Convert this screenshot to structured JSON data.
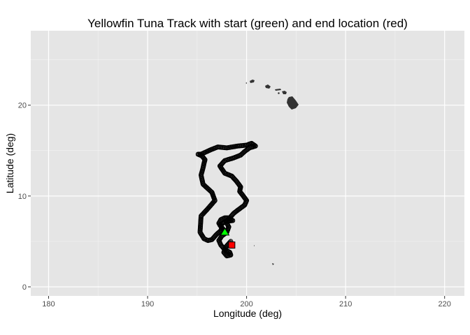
{
  "chart_data": {
    "type": "scatter",
    "title": "Yellowfin Tuna Track with start (green) and end location (red)",
    "xlabel": "Longitude (deg)",
    "ylabel": "Latitude (deg)",
    "xlim": [
      178.2,
      222.0
    ],
    "ylim": [
      -1.0,
      28.2
    ],
    "x_ticks": [
      180,
      190,
      200,
      210,
      220
    ],
    "y_ticks": [
      0,
      10,
      20
    ],
    "x_tick_labels": [
      "180",
      "190",
      "200",
      "210",
      "220"
    ],
    "y_tick_labels": [
      "0",
      "10",
      "20"
    ],
    "grid": true,
    "background": "#e5e5e5",
    "grid_color": "#ffffff",
    "track": {
      "x": [
        197.9,
        197.6,
        197.3,
        197.9,
        198.6,
        198.1,
        197.8,
        197.4,
        197.2,
        197.5,
        197.4,
        196.9,
        196.5,
        196.1,
        195.7,
        195.3,
        195.4,
        196.0,
        196.8,
        196.5,
        196.0,
        195.6,
        195.4,
        195.6,
        195.7,
        195.8,
        195.5,
        195.1,
        195.4,
        195.8,
        196.4,
        197.1,
        198.0,
        199.1,
        200.0,
        200.5,
        200.9,
        200.3,
        199.8,
        199.4,
        198.7,
        197.8,
        197.3,
        197.8,
        198.5,
        199.0,
        199.4,
        199.3,
        199.6,
        200.0,
        199.8,
        199.3,
        198.7,
        198.3,
        197.9,
        198.2,
        198.0,
        197.5,
        197.2,
        197.4,
        197.8,
        198.3,
        198.4,
        198.0,
        197.7,
        197.9,
        198.4
      ],
      "y": [
        6.0,
        6.4,
        6.8,
        7.2,
        7.3,
        7.6,
        7.6,
        7.4,
        7.0,
        6.5,
        6.2,
        5.7,
        5.2,
        5.1,
        5.3,
        6.0,
        7.8,
        8.5,
        9.5,
        10.4,
        10.9,
        11.3,
        12.3,
        13.1,
        13.6,
        14.0,
        14.4,
        14.6,
        14.6,
        14.8,
        15.1,
        15.4,
        15.3,
        15.5,
        15.6,
        15.8,
        15.5,
        15.3,
        14.9,
        14.5,
        14.2,
        13.9,
        13.3,
        12.5,
        12.2,
        11.6,
        11.0,
        10.5,
        10.1,
        9.5,
        9.0,
        8.6,
        8.1,
        7.6,
        7.2,
        6.6,
        6.0,
        5.6,
        5.1,
        4.6,
        4.1,
        3.8,
        3.5,
        3.4,
        3.8,
        4.4,
        5.0
      ]
    },
    "start_location": {
      "x": 197.8,
      "y": 6.0,
      "color": "#00ff00"
    },
    "end_location": {
      "x": 198.5,
      "y": 4.6,
      "color": "#ff0000"
    },
    "land_color": "#333333"
  }
}
